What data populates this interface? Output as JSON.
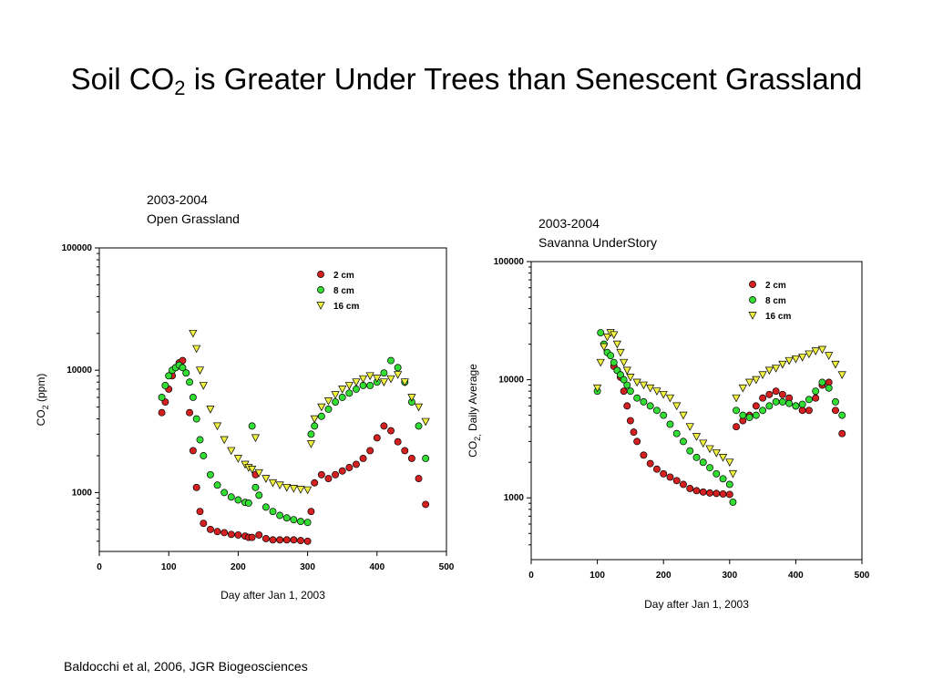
{
  "slide": {
    "title_main": "Soil CO",
    "title_sub": "2",
    "title_rest": " is Greater Under Trees than Senescent Grassland",
    "citation": "Baldocchi et al, 2006, JGR Biogeosciences"
  },
  "series_colors": {
    "2 cm": "#d42020",
    "8 cm": "#33dd33",
    "16 cm": "#f0f040"
  },
  "chart_data": [
    {
      "type": "scatter",
      "caption_line1": "2003-2004",
      "caption_line2": "Open Grassland",
      "xlabel": "Day after Jan 1, 2003",
      "ylabel_main": "CO",
      "ylabel_sub": "2",
      "ylabel_rest": " (ppm)",
      "xlim": [
        0,
        500
      ],
      "ylim": [
        330,
        100000
      ],
      "yscale": "log",
      "xticks": [
        0,
        100,
        200,
        300,
        400,
        500
      ],
      "xtick_labels": [
        "0",
        "100",
        "200",
        "300",
        "400",
        "500"
      ],
      "yticks": [
        1000,
        10000,
        100000
      ],
      "ytick_labels": [
        "1000",
        "10000",
        "100000"
      ],
      "legend_position": "top-right",
      "series": [
        {
          "name": "2 cm",
          "marker": "circle",
          "x": [
            90,
            95,
            100,
            105,
            110,
            115,
            120,
            125,
            130,
            135,
            140,
            145,
            150,
            160,
            170,
            180,
            190,
            200,
            210,
            215,
            220,
            225,
            230,
            240,
            250,
            260,
            270,
            280,
            290,
            300,
            305,
            310,
            320,
            330,
            340,
            350,
            360,
            370,
            380,
            390,
            400,
            410,
            420,
            430,
            440,
            450,
            460,
            470
          ],
          "y": [
            4500,
            5500,
            7000,
            9000,
            10500,
            11500,
            12000,
            9500,
            4500,
            2200,
            1100,
            700,
            560,
            500,
            480,
            470,
            455,
            450,
            440,
            430,
            430,
            1400,
            450,
            420,
            410,
            410,
            410,
            410,
            405,
            400,
            700,
            1200,
            1400,
            1300,
            1400,
            1500,
            1600,
            1700,
            1900,
            2200,
            2800,
            3500,
            3200,
            2600,
            2200,
            1900,
            1300,
            800
          ]
        },
        {
          "name": "8 cm",
          "marker": "circle",
          "x": [
            90,
            95,
            100,
            105,
            110,
            115,
            120,
            125,
            130,
            135,
            140,
            145,
            150,
            160,
            170,
            180,
            190,
            200,
            210,
            215,
            220,
            225,
            230,
            240,
            250,
            260,
            270,
            280,
            290,
            300,
            305,
            310,
            320,
            330,
            340,
            350,
            360,
            370,
            380,
            390,
            400,
            410,
            420,
            430,
            440,
            450,
            460,
            470
          ],
          "y": [
            6000,
            7500,
            9000,
            10000,
            10500,
            11000,
            10500,
            9500,
            8000,
            6000,
            4000,
            2700,
            2000,
            1400,
            1150,
            1000,
            920,
            870,
            830,
            820,
            3500,
            1100,
            950,
            760,
            700,
            650,
            620,
            600,
            580,
            570,
            3000,
            3500,
            4200,
            4800,
            5500,
            6000,
            6500,
            7000,
            7500,
            7500,
            8000,
            9500,
            12000,
            10500,
            8000,
            5500,
            3500,
            1900
          ]
        },
        {
          "name": "16 cm",
          "marker": "triangle",
          "x": [
            135,
            140,
            145,
            150,
            160,
            170,
            180,
            190,
            200,
            210,
            215,
            220,
            225,
            230,
            240,
            250,
            260,
            270,
            280,
            290,
            300,
            305,
            310,
            320,
            330,
            340,
            350,
            360,
            370,
            380,
            390,
            400,
            410,
            420,
            430,
            440,
            450,
            460,
            470
          ],
          "y": [
            20000,
            15000,
            10000,
            7500,
            4800,
            3500,
            2700,
            2200,
            1900,
            1700,
            1600,
            1550,
            2800,
            1450,
            1300,
            1200,
            1150,
            1100,
            1080,
            1060,
            1050,
            2500,
            4000,
            5000,
            5600,
            6300,
            7000,
            7500,
            8000,
            8500,
            9000,
            8600,
            8000,
            8500,
            9200,
            8000,
            6000,
            5000,
            3800
          ]
        }
      ]
    },
    {
      "type": "scatter",
      "caption_line1": "2003-2004",
      "caption_line2": "Savanna UnderStory",
      "xlabel": "Day after Jan 1, 2003",
      "ylabel_main": "CO",
      "ylabel_sub": "2,",
      "ylabel_rest": "  Daily Average",
      "xlim": [
        0,
        500
      ],
      "ylim": [
        300,
        100000
      ],
      "yscale": "log",
      "xticks": [
        0,
        100,
        200,
        300,
        400,
        500
      ],
      "xtick_labels": [
        "0",
        "100",
        "200",
        "300",
        "400",
        "500"
      ],
      "yticks": [
        1000,
        10000,
        100000
      ],
      "ytick_labels": [
        "1000",
        "10000",
        "100000"
      ],
      "legend_position": "top-right",
      "series": [
        {
          "name": "2 cm",
          "marker": "circle",
          "x": [
            125,
            130,
            135,
            140,
            145,
            150,
            155,
            160,
            170,
            180,
            190,
            200,
            210,
            220,
            230,
            240,
            250,
            260,
            270,
            280,
            290,
            300,
            310,
            320,
            330,
            340,
            350,
            360,
            370,
            380,
            390,
            400,
            410,
            420,
            430,
            440,
            450,
            460,
            470
          ],
          "y": [
            13000,
            12000,
            10500,
            8000,
            6000,
            4500,
            3600,
            3000,
            2300,
            1950,
            1750,
            1600,
            1500,
            1400,
            1300,
            1200,
            1150,
            1120,
            1100,
            1090,
            1080,
            1070,
            4000,
            4500,
            5000,
            6000,
            7000,
            7500,
            8000,
            7500,
            7000,
            6000,
            5500,
            5500,
            7000,
            9000,
            9500,
            5500,
            3500
          ]
        },
        {
          "name": "8 cm",
          "marker": "circle",
          "x": [
            100,
            105,
            110,
            115,
            120,
            125,
            130,
            135,
            140,
            145,
            150,
            160,
            170,
            180,
            190,
            200,
            210,
            220,
            230,
            240,
            250,
            260,
            270,
            280,
            290,
            300,
            305,
            310,
            320,
            330,
            340,
            350,
            360,
            370,
            380,
            390,
            400,
            410,
            420,
            430,
            440,
            450,
            460,
            470
          ],
          "y": [
            8000,
            25000,
            20000,
            17000,
            16000,
            14000,
            12000,
            11000,
            10000,
            9000,
            8000,
            7000,
            6500,
            6000,
            5500,
            5000,
            4200,
            3500,
            3000,
            2500,
            2200,
            2000,
            1800,
            1600,
            1450,
            1300,
            920,
            5500,
            5000,
            4800,
            5000,
            5500,
            6000,
            6500,
            6500,
            6300,
            6000,
            6200,
            6800,
            8000,
            9500,
            8500,
            6500,
            5000
          ]
        },
        {
          "name": "16 cm",
          "marker": "triangle",
          "x": [
            100,
            105,
            110,
            115,
            120,
            125,
            130,
            135,
            140,
            145,
            150,
            160,
            170,
            180,
            190,
            200,
            210,
            220,
            230,
            240,
            250,
            260,
            270,
            280,
            290,
            300,
            305,
            310,
            320,
            330,
            340,
            350,
            360,
            370,
            380,
            390,
            400,
            410,
            420,
            430,
            440,
            450,
            460,
            470
          ],
          "y": [
            8500,
            14000,
            19000,
            23000,
            25000,
            24000,
            20000,
            17000,
            14000,
            12000,
            10500,
            9500,
            9000,
            8500,
            8000,
            7500,
            7000,
            6000,
            5000,
            4000,
            3300,
            2900,
            2600,
            2400,
            2200,
            2000,
            1600,
            7000,
            8500,
            9500,
            10000,
            11000,
            12000,
            12500,
            13500,
            14500,
            15000,
            15500,
            16500,
            17500,
            18000,
            16000,
            13500,
            11000
          ]
        }
      ]
    }
  ]
}
